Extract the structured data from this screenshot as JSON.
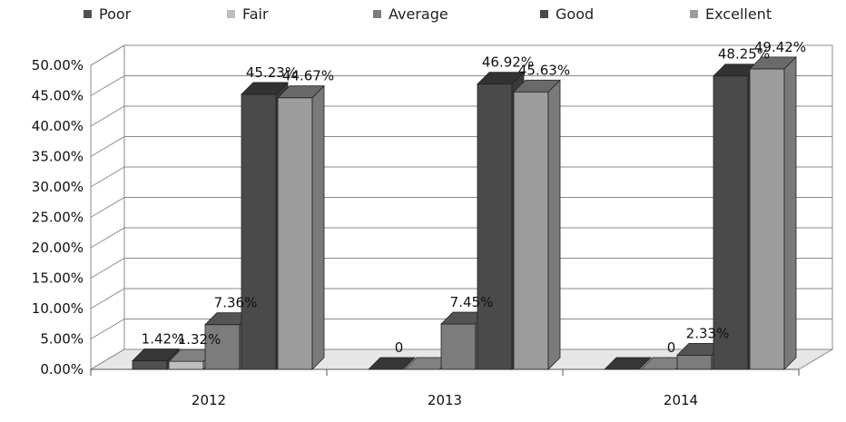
{
  "chart_data": {
    "type": "bar",
    "categories": [
      "2012",
      "2013",
      "2014"
    ],
    "series": [
      {
        "name": "Poor",
        "values": [
          1.42,
          0,
          0
        ],
        "labels": [
          "1.42%",
          "0",
          ""
        ]
      },
      {
        "name": "Fair",
        "values": [
          1.32,
          0,
          0
        ],
        "labels": [
          "1.32%",
          "",
          "0"
        ]
      },
      {
        "name": "Average",
        "values": [
          7.36,
          7.45,
          2.33
        ],
        "labels": [
          "7.36%",
          "7.45%",
          "2.33%"
        ]
      },
      {
        "name": "Good",
        "values": [
          45.23,
          46.92,
          48.25
        ],
        "labels": [
          "45.23%",
          "46.92%",
          "48.25%"
        ]
      },
      {
        "name": "Excellent",
        "values": [
          44.67,
          45.63,
          49.42
        ],
        "labels": [
          "44.67%",
          "45.63%",
          "49.42%"
        ]
      }
    ],
    "colors": [
      "#505050",
      "#bdbdbd",
      "#7c7c7c",
      "#4a4a4a",
      "#9c9c9c"
    ],
    "ylim": [
      0,
      50
    ],
    "yticks": [
      "0.00%",
      "5.00%",
      "10.00%",
      "15.00%",
      "20.00%",
      "25.00%",
      "30.00%",
      "35.00%",
      "40.00%",
      "45.00%",
      "50.00%"
    ],
    "grid": true,
    "legend": "top",
    "style": "3d-clustered-column"
  }
}
